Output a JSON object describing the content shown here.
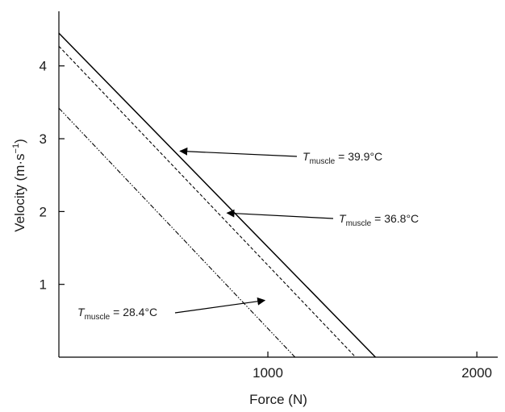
{
  "chart_data": {
    "type": "line",
    "title": "",
    "xlabel": "Force (N)",
    "ylabel": {
      "prefix": "Velocity (m·s",
      "exp": "−1",
      "suffix": ")"
    },
    "xlim": [
      0,
      2100
    ],
    "ylim": [
      0,
      4.75
    ],
    "x_ticks": [
      1000,
      2000
    ],
    "x_tick_labels": [
      "1000",
      "2000"
    ],
    "y_ticks": [
      1,
      2,
      3,
      4
    ],
    "y_tick_labels": [
      "1",
      "2",
      "3",
      "4"
    ],
    "grid": false,
    "series": [
      {
        "points": [
          [
            0,
            4.45
          ],
          [
            1515,
            0
          ]
        ],
        "style": "solid",
        "color": "#000000"
      },
      {
        "points": [
          [
            0,
            4.27
          ],
          [
            1420,
            0
          ]
        ],
        "style": "dashed",
        "color": "#000000"
      },
      {
        "points": [
          [
            0,
            3.42
          ],
          [
            1130,
            0
          ]
        ],
        "style": "dash-dot",
        "color": "#000000"
      }
    ],
    "annotations": [
      {
        "symbol": "T",
        "subscript": "muscle",
        "text": " = 39.9°C",
        "series_index": 0,
        "arrow_to": [
          580,
          2.83
        ]
      },
      {
        "symbol": "T",
        "subscript": "muscle",
        "text": " = 36.8°C",
        "series_index": 1,
        "arrow_to": [
          805,
          1.98
        ]
      },
      {
        "symbol": "T",
        "subscript": "muscle",
        "text": " = 28.4°C",
        "series_index": 2,
        "arrow_to": [
          985,
          0.78
        ]
      }
    ]
  }
}
